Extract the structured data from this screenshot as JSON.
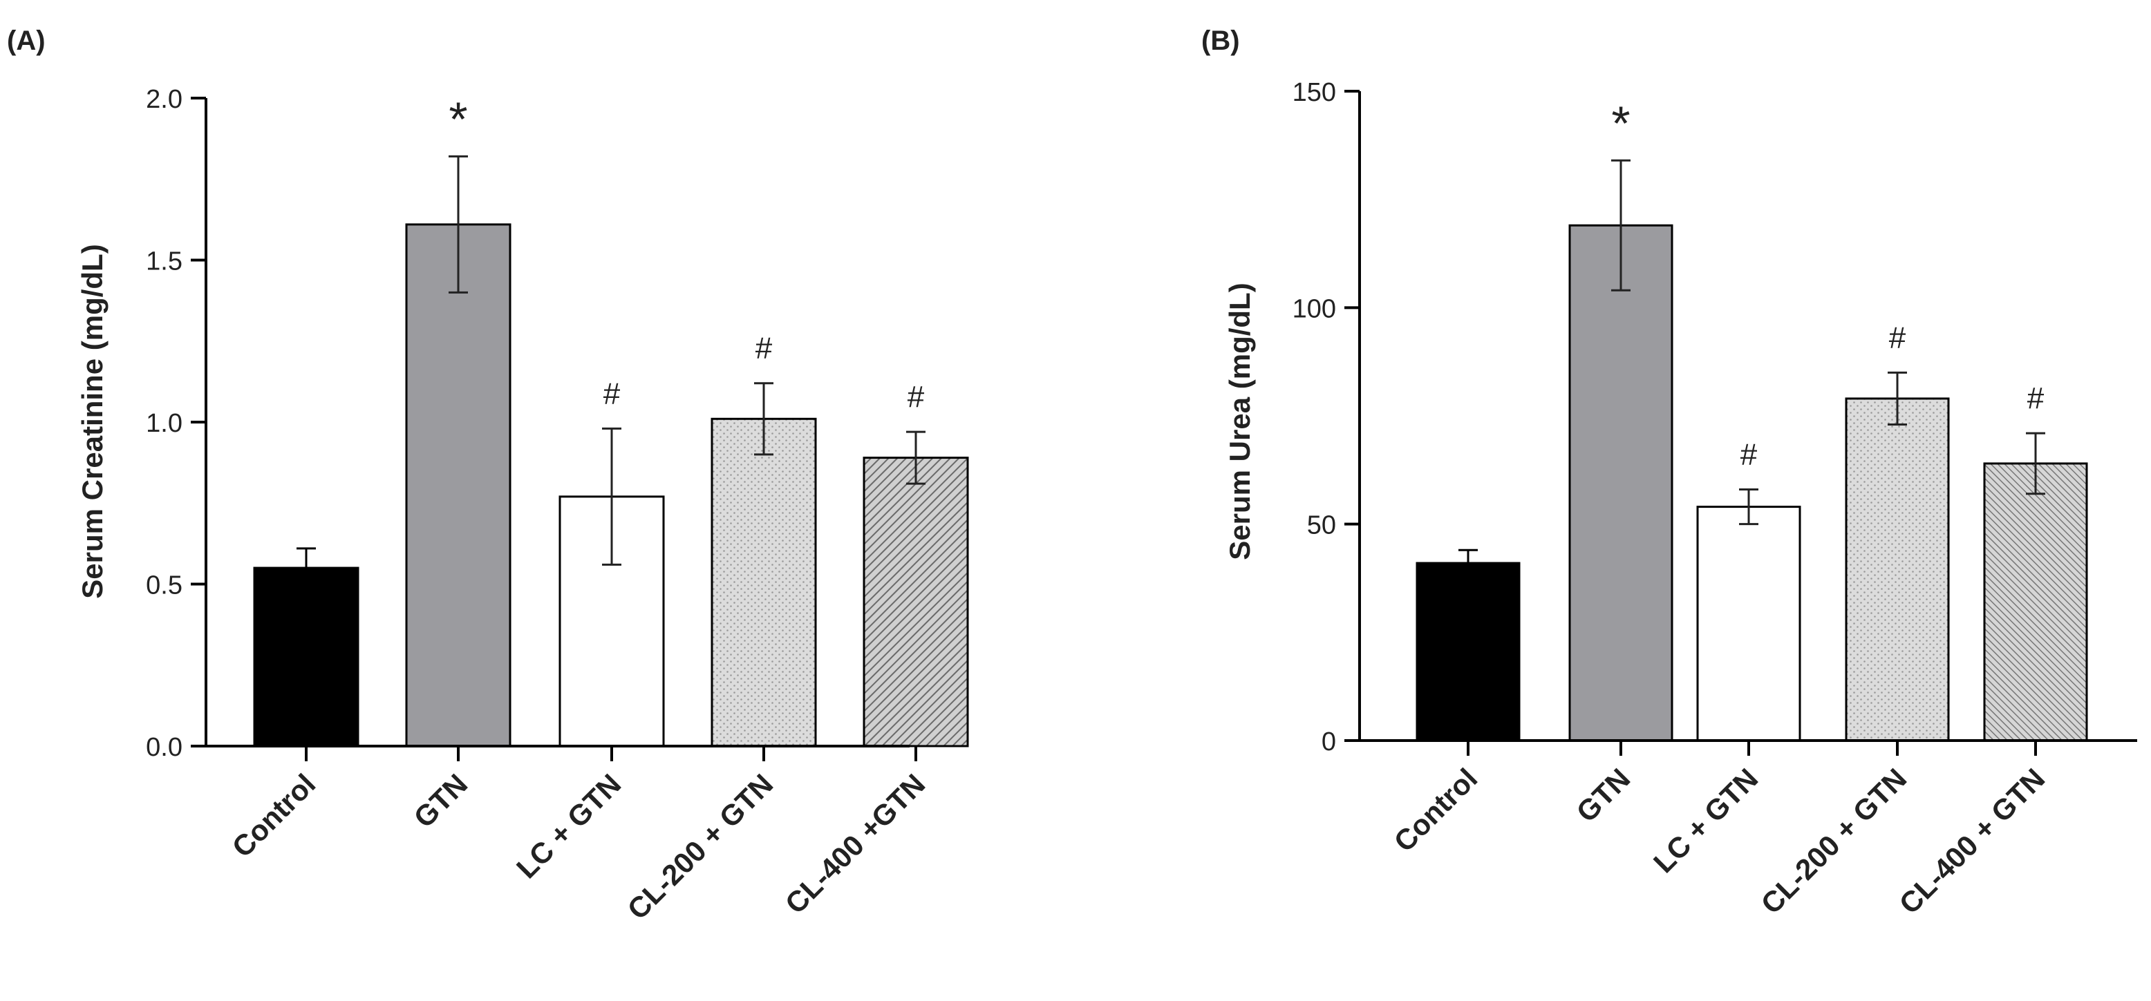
{
  "chart_data": [
    {
      "type": "bar",
      "panel_label": "(A)",
      "title": "",
      "ylabel": "Serum Creatinine (mg/dL)",
      "xlabel": "",
      "ylim": [
        0,
        2.0
      ],
      "yticks": [
        "0.0",
        "0.5",
        "1.0",
        "1.5",
        "2.0"
      ],
      "ytick_values": [
        0,
        0.5,
        1.0,
        1.5,
        2.0
      ],
      "categories": [
        "Control",
        "GTN",
        "LC + GTN",
        "CL-200 + GTN",
        "CL-400 +GTN"
      ],
      "values": [
        0.55,
        1.61,
        0.77,
        1.01,
        0.89
      ],
      "errors": [
        0.06,
        0.21,
        0.21,
        0.11,
        0.08
      ],
      "annotations": [
        "",
        "*",
        "#",
        "#",
        "#"
      ],
      "fills": [
        "solid-black",
        "solid-gray",
        "white",
        "dots",
        "diagonal"
      ]
    },
    {
      "type": "bar",
      "panel_label": "(B)",
      "title": "",
      "ylabel": "Serum Urea (mg/dL)",
      "xlabel": "",
      "ylim": [
        0,
        150
      ],
      "yticks": [
        "0",
        "50",
        "100",
        "150"
      ],
      "ytick_values": [
        0,
        50,
        100,
        150
      ],
      "categories": [
        "Control",
        "GTN",
        "LC + GTN",
        "CL-200 + GTN",
        "CL-400 + GTN"
      ],
      "values": [
        41,
        119,
        54,
        79,
        64
      ],
      "errors": [
        3,
        15,
        4,
        6,
        7
      ],
      "annotations": [
        "",
        "*",
        "#",
        "#",
        "#"
      ],
      "fills": [
        "solid-black",
        "solid-gray",
        "white",
        "dots",
        "diagonal-fine"
      ]
    }
  ]
}
